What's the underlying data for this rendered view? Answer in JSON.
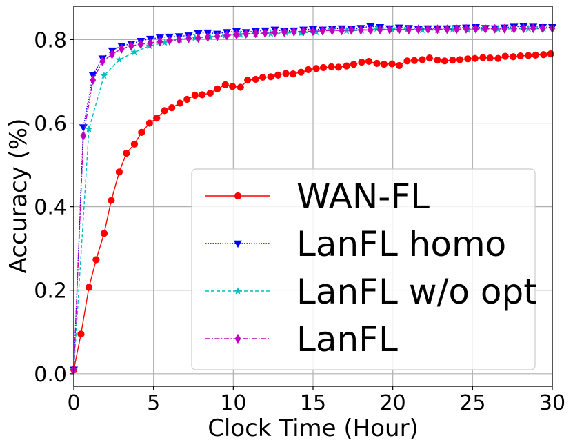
{
  "chart_data": {
    "type": "line",
    "title": "",
    "xlabel": "Clock Time (Hour)",
    "ylabel": "Accuracy (%)",
    "xlim": [
      0,
      30
    ],
    "ylim": [
      -0.03,
      0.88
    ],
    "xticks": [
      0,
      5,
      10,
      15,
      20,
      25,
      30
    ],
    "yticks": [
      0.0,
      0.2,
      0.4,
      0.6,
      0.8
    ],
    "xtick_labels": [
      "0",
      "5",
      "10",
      "15",
      "20",
      "25",
      "30"
    ],
    "ytick_labels": [
      "0.0",
      "0.2",
      "0.4",
      "0.6",
      "0.8"
    ],
    "grid": true,
    "legend_position": "lower-right",
    "series": [
      {
        "name": "WAN-FL",
        "color": "#ff0000",
        "line_style": "solid",
        "marker": "circle",
        "x": [
          0,
          0.45,
          0.95,
          1.4,
          1.9,
          2.35,
          2.85,
          3.3,
          3.8,
          4.25,
          4.75,
          5.2,
          5.7,
          6.15,
          6.65,
          7.1,
          7.6,
          8.05,
          8.55,
          9.0,
          9.5,
          9.95,
          10.45,
          10.9,
          11.4,
          11.85,
          12.35,
          12.8,
          13.3,
          13.75,
          14.25,
          14.7,
          15.2,
          15.65,
          16.15,
          16.6,
          17.1,
          17.55,
          18.05,
          18.5,
          19.0,
          19.45,
          19.95,
          20.4,
          20.9,
          21.35,
          21.85,
          22.3,
          22.8,
          23.25,
          23.75,
          24.2,
          24.7,
          25.15,
          25.65,
          26.1,
          26.6,
          27.05,
          27.55,
          28.0,
          28.5,
          28.95,
          29.45,
          29.9
        ],
        "values": [
          0.01,
          0.095,
          0.207,
          0.273,
          0.336,
          0.415,
          0.483,
          0.528,
          0.55,
          0.578,
          0.6,
          0.612,
          0.63,
          0.637,
          0.648,
          0.657,
          0.667,
          0.668,
          0.672,
          0.682,
          0.692,
          0.688,
          0.686,
          0.703,
          0.705,
          0.71,
          0.711,
          0.715,
          0.719,
          0.718,
          0.722,
          0.728,
          0.731,
          0.733,
          0.735,
          0.734,
          0.737,
          0.741,
          0.746,
          0.748,
          0.743,
          0.741,
          0.742,
          0.738,
          0.749,
          0.75,
          0.752,
          0.756,
          0.751,
          0.749,
          0.751,
          0.752,
          0.754,
          0.755,
          0.757,
          0.756,
          0.755,
          0.76,
          0.759,
          0.761,
          0.762,
          0.763,
          0.764,
          0.766
        ]
      },
      {
        "name": "LanFL homo",
        "color": "#0000ff",
        "line_style": "dotted",
        "marker": "triangle-down",
        "x": [
          0,
          0.6,
          1.2,
          1.8,
          2.4,
          3.0,
          3.6,
          4.2,
          4.8,
          5.4,
          6.0,
          6.6,
          7.2,
          7.8,
          8.4,
          9.0,
          9.6,
          10.2,
          10.8,
          11.4,
          12.0,
          12.6,
          13.2,
          13.8,
          14.4,
          15.0,
          15.6,
          16.2,
          16.8,
          17.4,
          18.0,
          18.6,
          19.2,
          19.8,
          20.4,
          21.0,
          21.6,
          22.2,
          22.8,
          23.4,
          24.0,
          24.6,
          25.2,
          25.8,
          26.4,
          27.0,
          27.6,
          28.2,
          28.8,
          29.4,
          30.0
        ],
        "values": [
          0.01,
          0.59,
          0.715,
          0.755,
          0.774,
          0.785,
          0.79,
          0.797,
          0.802,
          0.805,
          0.807,
          0.808,
          0.81,
          0.815,
          0.817,
          0.814,
          0.818,
          0.82,
          0.818,
          0.82,
          0.822,
          0.824,
          0.82,
          0.822,
          0.824,
          0.825,
          0.824,
          0.826,
          0.827,
          0.825,
          0.828,
          0.832,
          0.83,
          0.827,
          0.829,
          0.828,
          0.826,
          0.827,
          0.827,
          0.827,
          0.828,
          0.829,
          0.83,
          0.828,
          0.827,
          0.829,
          0.831,
          0.832,
          0.831,
          0.83,
          0.83
        ]
      },
      {
        "name": "LanFL w/o opt",
        "color": "#00bfbf",
        "line_style": "dashed",
        "marker": "star",
        "x": [
          0,
          0.95,
          1.9,
          2.85,
          3.8,
          4.75,
          5.7,
          6.65,
          7.6,
          8.55,
          9.5,
          10.45,
          11.4,
          12.35,
          13.3,
          14.25,
          15.2,
          16.15,
          17.1,
          18.05,
          19.0,
          19.95,
          20.9,
          21.85,
          22.8,
          23.75,
          24.7,
          25.65,
          26.6,
          27.55,
          28.5,
          29.45
        ],
        "values": [
          0.01,
          0.586,
          0.714,
          0.752,
          0.77,
          0.785,
          0.793,
          0.8,
          0.804,
          0.806,
          0.81,
          0.812,
          0.814,
          0.814,
          0.816,
          0.816,
          0.818,
          0.824,
          0.821,
          0.822,
          0.826,
          0.824,
          0.824,
          0.823,
          0.823,
          0.824,
          0.823,
          0.826,
          0.825,
          0.826,
          0.826,
          0.826
        ]
      },
      {
        "name": "LanFL",
        "color": "#bf00bf",
        "line_style": "dashdot",
        "marker": "thin-diamond",
        "x": [
          0,
          0.6,
          1.2,
          1.8,
          2.4,
          3.0,
          3.6,
          4.2,
          4.8,
          5.4,
          6.0,
          6.6,
          7.2,
          7.8,
          8.4,
          9.0,
          9.6,
          10.2,
          10.8,
          11.4,
          12.0,
          12.6,
          13.2,
          13.8,
          14.4,
          15.0,
          15.6,
          16.2,
          16.8,
          17.4,
          18.0,
          18.6,
          19.2,
          19.8,
          20.4,
          21.0,
          21.6,
          22.2,
          22.8,
          23.4,
          24.0,
          24.6,
          25.2,
          25.8,
          26.4,
          27.0,
          27.6,
          28.2,
          28.8,
          29.4,
          30.0
        ],
        "values": [
          0.01,
          0.57,
          0.703,
          0.748,
          0.765,
          0.778,
          0.785,
          0.789,
          0.792,
          0.795,
          0.798,
          0.8,
          0.803,
          0.804,
          0.806,
          0.808,
          0.81,
          0.812,
          0.814,
          0.815,
          0.816,
          0.817,
          0.818,
          0.819,
          0.82,
          0.82,
          0.821,
          0.822,
          0.822,
          0.823,
          0.823,
          0.823,
          0.824,
          0.824,
          0.824,
          0.824,
          0.825,
          0.825,
          0.825,
          0.825,
          0.825,
          0.826,
          0.826,
          0.826,
          0.826,
          0.826,
          0.826,
          0.827,
          0.827,
          0.827,
          0.827
        ]
      }
    ]
  }
}
